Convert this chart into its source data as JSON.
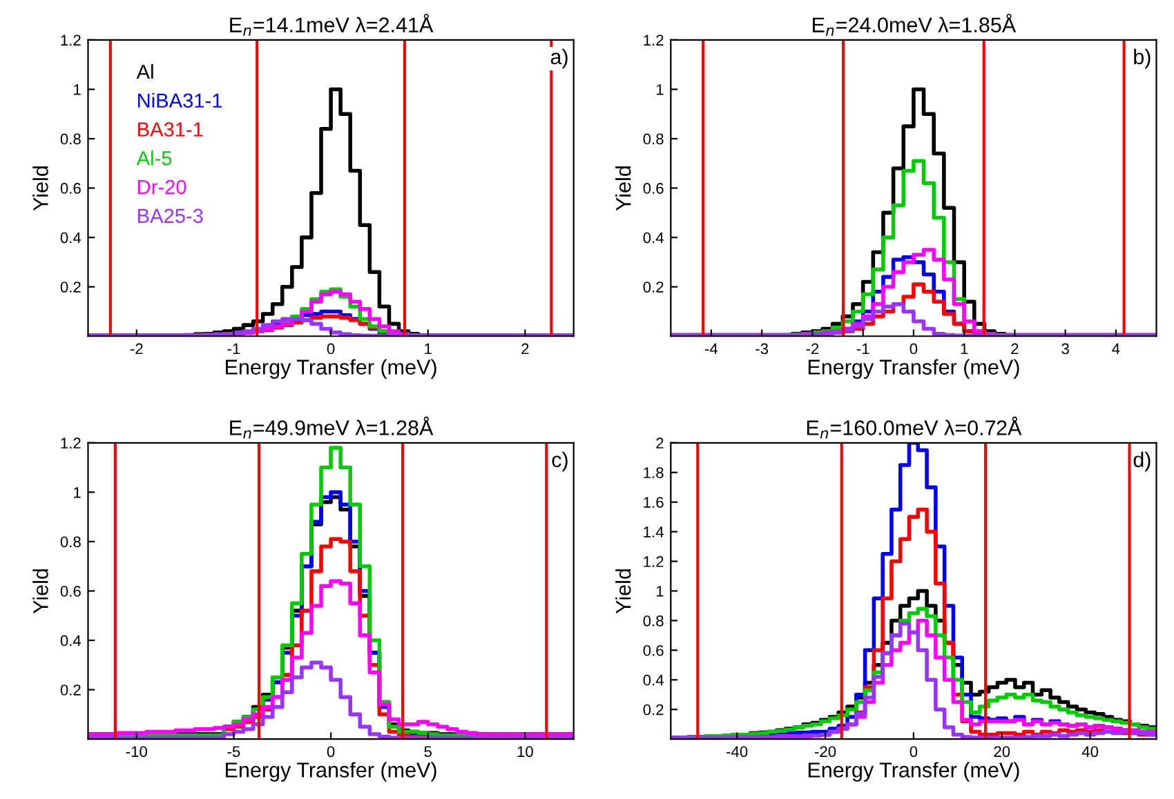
{
  "chart_data": [
    {
      "type": "histogram",
      "title": "E$_{n}$=14.1meV λ=2.41Å",
      "xlabel": "Energy Transfer (meV)",
      "ylabel": "Yield",
      "annotations": [
        "a)"
      ],
      "legend": "top left",
      "bins": [
        -2.5,
        -2.4,
        -2.3,
        -2.2,
        -2.1,
        -2.0,
        -1.9,
        -1.8,
        -1.7,
        -1.6,
        -1.5,
        -1.4,
        -1.3,
        -1.2,
        -1.1,
        -1.0,
        -0.9,
        -0.8,
        -0.7,
        -0.6,
        -0.5,
        -0.4,
        -0.3,
        -0.2,
        -0.1,
        0.0,
        0.1,
        0.2,
        0.3,
        0.4,
        0.5,
        0.6,
        0.7,
        0.8,
        0.9,
        1.0,
        1.1,
        1.2,
        1.3,
        1.4,
        1.5,
        1.6,
        1.7,
        1.8,
        1.9,
        2.0,
        2.1,
        2.2,
        2.3,
        2.4,
        2.5
      ],
      "xlim": [
        -2.5,
        2.5
      ],
      "xticks": [
        -2,
        -1,
        0,
        1,
        2
      ],
      "ylim": [
        0,
        1.2
      ],
      "yticks": [
        0.2,
        0.4,
        0.6,
        0.8,
        1,
        1.2
      ],
      "ref_lines": [
        {
          "axis": "x",
          "value": -2.27,
          "color": "#ff0000"
        },
        {
          "axis": "x",
          "value": -0.76,
          "color": "#ff0000"
        },
        {
          "axis": "x",
          "value": 0.76,
          "color": "#ff0000"
        },
        {
          "axis": "x",
          "value": 2.27,
          "color": "#ff0000"
        }
      ],
      "series": [
        {
          "name": "Al",
          "color": "#000000",
          "values": [
            0.003,
            0.003,
            0.003,
            0.003,
            0.003,
            0.003,
            0.003,
            0.003,
            0.003,
            0.003,
            0.005,
            0.008,
            0.01,
            0.015,
            0.02,
            0.03,
            0.045,
            0.06,
            0.09,
            0.13,
            0.2,
            0.28,
            0.4,
            0.58,
            0.84,
            1.0,
            0.9,
            0.67,
            0.45,
            0.26,
            0.12,
            0.05,
            0.02,
            0.01,
            0.003,
            0.003,
            0.003,
            0.003,
            0.003,
            0.003,
            0.003,
            0.003,
            0.003,
            0.003,
            0.003,
            0.003,
            0.003,
            0.003,
            0.003,
            0.003
          ]
        },
        {
          "name": "NiBA31-1",
          "color": "#0000ff",
          "values": [
            0.002,
            0.002,
            0.002,
            0.002,
            0.002,
            0.002,
            0.002,
            0.002,
            0.002,
            0.002,
            0.003,
            0.004,
            0.005,
            0.006,
            0.008,
            0.01,
            0.015,
            0.02,
            0.03,
            0.045,
            0.06,
            0.075,
            0.085,
            0.09,
            0.1,
            0.1,
            0.085,
            0.07,
            0.05,
            0.03,
            0.015,
            0.007,
            0.004,
            0.003,
            0.002,
            0.002,
            0.002,
            0.002,
            0.002,
            0.002,
            0.002,
            0.002,
            0.002,
            0.002,
            0.002,
            0.002,
            0.002,
            0.002,
            0.002,
            0.002
          ]
        },
        {
          "name": "BA31-1",
          "color": "#ff0000",
          "values": [
            0.002,
            0.002,
            0.002,
            0.002,
            0.002,
            0.002,
            0.002,
            0.002,
            0.002,
            0.002,
            0.003,
            0.004,
            0.005,
            0.006,
            0.008,
            0.01,
            0.013,
            0.02,
            0.025,
            0.035,
            0.045,
            0.055,
            0.065,
            0.075,
            0.08,
            0.08,
            0.075,
            0.065,
            0.05,
            0.035,
            0.02,
            0.01,
            0.005,
            0.003,
            0.002,
            0.002,
            0.002,
            0.002,
            0.002,
            0.002,
            0.002,
            0.002,
            0.002,
            0.002,
            0.002,
            0.002,
            0.002,
            0.002,
            0.002,
            0.002
          ]
        },
        {
          "name": "Al-5",
          "color": "#00cc00",
          "values": [
            0.002,
            0.002,
            0.002,
            0.002,
            0.002,
            0.002,
            0.002,
            0.002,
            0.002,
            0.002,
            0.003,
            0.004,
            0.005,
            0.006,
            0.008,
            0.01,
            0.015,
            0.02,
            0.03,
            0.04,
            0.06,
            0.08,
            0.11,
            0.15,
            0.18,
            0.19,
            0.16,
            0.12,
            0.07,
            0.04,
            0.02,
            0.01,
            0.005,
            0.003,
            0.002,
            0.002,
            0.002,
            0.002,
            0.002,
            0.002,
            0.002,
            0.002,
            0.002,
            0.002,
            0.002,
            0.002,
            0.002,
            0.002,
            0.002,
            0.002
          ]
        },
        {
          "name": "Dr-20",
          "color": "#ff00ff",
          "values": [
            0.002,
            0.002,
            0.002,
            0.002,
            0.002,
            0.002,
            0.002,
            0.002,
            0.002,
            0.002,
            0.003,
            0.004,
            0.005,
            0.006,
            0.008,
            0.01,
            0.013,
            0.02,
            0.03,
            0.04,
            0.05,
            0.07,
            0.1,
            0.14,
            0.17,
            0.18,
            0.17,
            0.14,
            0.11,
            0.07,
            0.04,
            0.02,
            0.008,
            0.004,
            0.002,
            0.002,
            0.002,
            0.002,
            0.002,
            0.002,
            0.002,
            0.002,
            0.002,
            0.002,
            0.002,
            0.002,
            0.002,
            0.002,
            0.002,
            0.002
          ]
        },
        {
          "name": "BA25-3",
          "color": "#9933ff",
          "values": [
            0.002,
            0.002,
            0.002,
            0.002,
            0.002,
            0.002,
            0.002,
            0.002,
            0.002,
            0.002,
            0.003,
            0.004,
            0.005,
            0.008,
            0.01,
            0.015,
            0.02,
            0.03,
            0.045,
            0.06,
            0.07,
            0.07,
            0.065,
            0.05,
            0.03,
            0.015,
            0.008,
            0.004,
            0.003,
            0.002,
            0.002,
            0.002,
            0.002,
            0.002,
            0.002,
            0.002,
            0.002,
            0.002,
            0.002,
            0.002,
            0.002,
            0.002,
            0.002,
            0.002,
            0.002,
            0.002,
            0.002,
            0.002,
            0.002,
            0.002
          ]
        }
      ]
    },
    {
      "type": "histogram",
      "title": "E$_{n}$=24.0meV λ=1.85Å",
      "xlabel": "Energy Transfer (meV)",
      "ylabel": "Yield",
      "annotations": [
        "b)"
      ],
      "bins": [
        -4.8,
        -4.6,
        -4.4,
        -4.2,
        -4.0,
        -3.8,
        -3.6,
        -3.4,
        -3.2,
        -3.0,
        -2.8,
        -2.6,
        -2.4,
        -2.2,
        -2.0,
        -1.8,
        -1.6,
        -1.4,
        -1.2,
        -1.0,
        -0.8,
        -0.6,
        -0.4,
        -0.2,
        0.0,
        0.2,
        0.4,
        0.6,
        0.8,
        1.0,
        1.2,
        1.4,
        1.6,
        1.8,
        2.0,
        2.2,
        2.4,
        2.6,
        2.8,
        3.0,
        3.2,
        3.4,
        3.6,
        3.8,
        4.0,
        4.2,
        4.4,
        4.6,
        4.8
      ],
      "xlim": [
        -4.8,
        4.8
      ],
      "xticks": [
        -4,
        -3,
        -2,
        -1,
        0,
        1,
        2,
        3,
        4
      ],
      "ylim": [
        0,
        1.2
      ],
      "yticks": [
        0.2,
        0.4,
        0.6,
        0.8,
        1,
        1.2
      ],
      "ref_lines": [
        {
          "axis": "x",
          "value": -4.16,
          "color": "#ff0000"
        },
        {
          "axis": "x",
          "value": -1.39,
          "color": "#ff0000"
        },
        {
          "axis": "x",
          "value": 1.39,
          "color": "#ff0000"
        },
        {
          "axis": "x",
          "value": 4.16,
          "color": "#ff0000"
        }
      ],
      "series": [
        {
          "color": "#000000",
          "values": [
            0.005,
            0.005,
            0.005,
            0.005,
            0.005,
            0.005,
            0.005,
            0.005,
            0.005,
            0.005,
            0.005,
            0.005,
            0.01,
            0.015,
            0.02,
            0.03,
            0.05,
            0.08,
            0.13,
            0.22,
            0.34,
            0.5,
            0.68,
            0.85,
            1.0,
            0.9,
            0.74,
            0.52,
            0.3,
            0.14,
            0.05,
            0.02,
            0.01,
            0.005,
            0.005,
            0.005,
            0.005,
            0.005,
            0.005,
            0.005,
            0.005,
            0.005,
            0.005,
            0.005,
            0.005,
            0.005,
            0.005,
            0.005
          ]
        },
        {
          "color": "#0000ff",
          "values": [
            0.003,
            0.003,
            0.003,
            0.003,
            0.003,
            0.003,
            0.003,
            0.003,
            0.003,
            0.003,
            0.003,
            0.003,
            0.004,
            0.006,
            0.01,
            0.015,
            0.02,
            0.03,
            0.06,
            0.1,
            0.18,
            0.24,
            0.31,
            0.32,
            0.3,
            0.25,
            0.18,
            0.1,
            0.05,
            0.02,
            0.01,
            0.005,
            0.004,
            0.003,
            0.003,
            0.003,
            0.003,
            0.003,
            0.003,
            0.003,
            0.003,
            0.003,
            0.003,
            0.003,
            0.003,
            0.003,
            0.003,
            0.003
          ]
        },
        {
          "color": "#ff0000",
          "values": [
            0.003,
            0.003,
            0.003,
            0.003,
            0.003,
            0.003,
            0.003,
            0.003,
            0.003,
            0.003,
            0.003,
            0.003,
            0.003,
            0.005,
            0.007,
            0.01,
            0.015,
            0.02,
            0.03,
            0.05,
            0.08,
            0.1,
            0.13,
            0.16,
            0.21,
            0.18,
            0.14,
            0.09,
            0.05,
            0.02,
            0.01,
            0.005,
            0.003,
            0.003,
            0.003,
            0.003,
            0.003,
            0.003,
            0.003,
            0.003,
            0.003,
            0.003,
            0.003,
            0.003,
            0.003,
            0.003,
            0.003,
            0.003
          ]
        },
        {
          "color": "#00cc00",
          "values": [
            0.003,
            0.003,
            0.003,
            0.003,
            0.003,
            0.003,
            0.003,
            0.003,
            0.003,
            0.003,
            0.003,
            0.003,
            0.007,
            0.01,
            0.015,
            0.02,
            0.035,
            0.06,
            0.1,
            0.17,
            0.27,
            0.4,
            0.53,
            0.67,
            0.71,
            0.62,
            0.48,
            0.3,
            0.15,
            0.06,
            0.02,
            0.01,
            0.005,
            0.003,
            0.003,
            0.003,
            0.003,
            0.003,
            0.003,
            0.003,
            0.003,
            0.003,
            0.003,
            0.003,
            0.003,
            0.003,
            0.003,
            0.003
          ]
        },
        {
          "color": "#ff00ff",
          "values": [
            0.005,
            0.005,
            0.005,
            0.005,
            0.005,
            0.005,
            0.005,
            0.005,
            0.005,
            0.005,
            0.005,
            0.005,
            0.005,
            0.008,
            0.01,
            0.015,
            0.02,
            0.03,
            0.05,
            0.08,
            0.13,
            0.2,
            0.26,
            0.3,
            0.33,
            0.35,
            0.31,
            0.23,
            0.13,
            0.06,
            0.02,
            0.01,
            0.005,
            0.005,
            0.005,
            0.005,
            0.005,
            0.005,
            0.005,
            0.005,
            0.005,
            0.005,
            0.005,
            0.005,
            0.005,
            0.005,
            0.005,
            0.005
          ]
        },
        {
          "color": "#9933ff",
          "values": [
            0.003,
            0.003,
            0.003,
            0.003,
            0.003,
            0.003,
            0.003,
            0.003,
            0.003,
            0.003,
            0.003,
            0.003,
            0.003,
            0.005,
            0.007,
            0.01,
            0.015,
            0.025,
            0.04,
            0.07,
            0.1,
            0.12,
            0.13,
            0.1,
            0.06,
            0.03,
            0.01,
            0.005,
            0.003,
            0.002,
            0.002,
            0.002,
            0.002,
            0.002,
            0.002,
            0.002,
            0.002,
            0.002,
            0.002,
            0.002,
            0.002,
            0.002,
            0.002,
            0.002,
            0.002,
            0.002,
            0.002,
            0.002
          ]
        }
      ]
    },
    {
      "type": "histogram",
      "title": "E$_{n}$=49.9meV λ=1.28Å",
      "xlabel": "Energy Transfer (meV)",
      "ylabel": "Yield",
      "annotations": [
        "c)"
      ],
      "bins": [
        -12.5,
        -12.0,
        -11.5,
        -11.0,
        -10.5,
        -10.0,
        -9.5,
        -9.0,
        -8.5,
        -8.0,
        -7.5,
        -7.0,
        -6.5,
        -6.0,
        -5.5,
        -5.0,
        -4.5,
        -4.0,
        -3.5,
        -3.0,
        -2.5,
        -2.0,
        -1.5,
        -1.0,
        -0.5,
        0.0,
        0.5,
        1.0,
        1.5,
        2.0,
        2.5,
        3.0,
        3.5,
        4.0,
        4.5,
        5.0,
        5.5,
        6.0,
        6.5,
        7.0,
        7.5,
        8.0,
        8.5,
        9.0,
        9.5,
        10.0,
        10.5,
        11.0,
        11.5,
        12.0,
        12.5
      ],
      "xlim": [
        -12.5,
        12.5
      ],
      "xticks": [
        -10,
        -5,
        0,
        5,
        10
      ],
      "ylim": [
        0,
        1.2
      ],
      "yticks": [
        0.2,
        0.4,
        0.6,
        0.8,
        1,
        1.2
      ],
      "ref_lines": [
        {
          "axis": "x",
          "value": -11.1,
          "color": "#ff0000"
        },
        {
          "axis": "x",
          "value": -3.7,
          "color": "#ff0000"
        },
        {
          "axis": "x",
          "value": 3.7,
          "color": "#ff0000"
        },
        {
          "axis": "x",
          "value": 11.1,
          "color": "#ff0000"
        }
      ],
      "series": [
        {
          "color": "#000000",
          "values": [
            0.02,
            0.02,
            0.02,
            0.02,
            0.02,
            0.02,
            0.02,
            0.02,
            0.02,
            0.02,
            0.02,
            0.02,
            0.02,
            0.02,
            0.05,
            0.07,
            0.09,
            0.13,
            0.18,
            0.25,
            0.37,
            0.52,
            0.7,
            0.87,
            0.96,
            0.98,
            0.93,
            0.78,
            0.58,
            0.35,
            0.15,
            0.06,
            0.035,
            0.03,
            0.025,
            0.025,
            0.02,
            0.02,
            0.02,
            0.02,
            0.02,
            0.02,
            0.02,
            0.02,
            0.02,
            0.02,
            0.02,
            0.02,
            0.02,
            0.02
          ]
        },
        {
          "color": "#0000ff",
          "values": [
            0.015,
            0.015,
            0.015,
            0.015,
            0.015,
            0.015,
            0.015,
            0.015,
            0.015,
            0.015,
            0.015,
            0.015,
            0.015,
            0.015,
            0.05,
            0.07,
            0.09,
            0.12,
            0.16,
            0.23,
            0.35,
            0.5,
            0.7,
            0.88,
            0.98,
            1.0,
            0.95,
            0.8,
            0.6,
            0.35,
            0.13,
            0.05,
            0.03,
            0.025,
            0.02,
            0.02,
            0.015,
            0.015,
            0.015,
            0.015,
            0.015,
            0.015,
            0.015,
            0.015,
            0.015,
            0.015,
            0.015,
            0.015,
            0.015,
            0.015
          ]
        },
        {
          "color": "#ff0000",
          "values": [
            0.01,
            0.01,
            0.01,
            0.01,
            0.01,
            0.01,
            0.01,
            0.01,
            0.01,
            0.01,
            0.01,
            0.01,
            0.01,
            0.01,
            0.04,
            0.05,
            0.07,
            0.09,
            0.12,
            0.17,
            0.26,
            0.38,
            0.52,
            0.68,
            0.78,
            0.81,
            0.8,
            0.68,
            0.5,
            0.3,
            0.1,
            0.03,
            0.015,
            0.01,
            0.01,
            0.01,
            0.01,
            0.01,
            0.01,
            0.01,
            0.01,
            0.01,
            0.01,
            0.01,
            0.01,
            0.01,
            0.01,
            0.01,
            0.01,
            0.01
          ]
        },
        {
          "color": "#00cc00",
          "values": [
            0.015,
            0.015,
            0.015,
            0.015,
            0.015,
            0.015,
            0.015,
            0.015,
            0.015,
            0.015,
            0.015,
            0.015,
            0.015,
            0.015,
            0.05,
            0.07,
            0.09,
            0.12,
            0.17,
            0.25,
            0.38,
            0.55,
            0.75,
            0.95,
            1.1,
            1.18,
            1.1,
            0.95,
            0.7,
            0.4,
            0.15,
            0.05,
            0.03,
            0.03,
            0.025,
            0.02,
            0.015,
            0.015,
            0.015,
            0.015,
            0.015,
            0.015,
            0.015,
            0.015,
            0.015,
            0.015,
            0.015,
            0.015,
            0.015,
            0.015
          ]
        },
        {
          "color": "#ff00ff",
          "values": [
            0.02,
            0.02,
            0.02,
            0.025,
            0.025,
            0.025,
            0.03,
            0.03,
            0.03,
            0.035,
            0.035,
            0.04,
            0.04,
            0.045,
            0.05,
            0.06,
            0.08,
            0.1,
            0.13,
            0.17,
            0.24,
            0.33,
            0.43,
            0.54,
            0.62,
            0.64,
            0.63,
            0.55,
            0.42,
            0.27,
            0.14,
            0.08,
            0.06,
            0.06,
            0.07,
            0.06,
            0.05,
            0.04,
            0.03,
            0.025,
            0.02,
            0.02,
            0.02,
            0.02,
            0.02,
            0.02,
            0.02,
            0.02,
            0.02,
            0.02
          ]
        },
        {
          "color": "#9933ff",
          "values": [
            0.005,
            0.005,
            0.005,
            0.005,
            0.005,
            0.005,
            0.005,
            0.005,
            0.005,
            0.005,
            0.005,
            0.005,
            0.005,
            0.005,
            0.02,
            0.03,
            0.04,
            0.06,
            0.09,
            0.13,
            0.19,
            0.25,
            0.29,
            0.31,
            0.29,
            0.24,
            0.17,
            0.1,
            0.05,
            0.02,
            0.01,
            0.005,
            0.005,
            0.005,
            0.005,
            0.005,
            0.005,
            0.005,
            0.005,
            0.005,
            0.005,
            0.005,
            0.005,
            0.005,
            0.005,
            0.005,
            0.005,
            0.005,
            0.005,
            0.005
          ]
        }
      ]
    },
    {
      "type": "histogram",
      "title": "E$_{n}$=160.0meV λ=0.72Å",
      "xlabel": "Energy Transfer (meV)",
      "ylabel": "Yield",
      "annotations": [
        "d)"
      ],
      "bins": [
        -55,
        -53,
        -51,
        -49,
        -47,
        -45,
        -43,
        -41,
        -39,
        -37,
        -35,
        -33,
        -31,
        -29,
        -27,
        -25,
        -23,
        -21,
        -19,
        -17,
        -15,
        -13,
        -11,
        -9,
        -7,
        -5,
        -3,
        -1,
        1,
        3,
        5,
        7,
        9,
        11,
        13,
        15,
        17,
        19,
        21,
        23,
        25,
        27,
        29,
        31,
        33,
        35,
        37,
        39,
        41,
        43,
        45,
        47,
        49,
        51,
        53,
        55
      ],
      "xlim": [
        -55,
        55
      ],
      "xticks": [
        -40,
        -20,
        0,
        20,
        40
      ],
      "ylim": [
        0,
        2
      ],
      "yticks": [
        0.2,
        0.4,
        0.6,
        0.8,
        1,
        1.2,
        1.4,
        1.6,
        1.8,
        2
      ],
      "ref_lines": [
        {
          "axis": "x",
          "value": -48.9,
          "color": "#ff0000"
        },
        {
          "axis": "x",
          "value": -16.3,
          "color": "#ff0000"
        },
        {
          "axis": "x",
          "value": 16.3,
          "color": "#ff0000"
        },
        {
          "axis": "x",
          "value": 48.9,
          "color": "#ff0000"
        }
      ],
      "series": [
        {
          "color": "#000000",
          "values": [
            0.01,
            0.01,
            0.015,
            0.015,
            0.02,
            0.02,
            0.025,
            0.03,
            0.03,
            0.04,
            0.045,
            0.05,
            0.06,
            0.07,
            0.08,
            0.1,
            0.11,
            0.13,
            0.15,
            0.18,
            0.22,
            0.28,
            0.38,
            0.5,
            0.65,
            0.8,
            0.9,
            0.95,
            1.0,
            0.9,
            0.8,
            0.65,
            0.5,
            0.38,
            0.3,
            0.32,
            0.35,
            0.38,
            0.4,
            0.35,
            0.38,
            0.3,
            0.33,
            0.28,
            0.25,
            0.22,
            0.2,
            0.18,
            0.17,
            0.15,
            0.13,
            0.12,
            0.1,
            0.09,
            0.08
          ]
        },
        {
          "color": "#0000ff",
          "values": [
            0.01,
            0.01,
            0.015,
            0.015,
            0.02,
            0.02,
            0.02,
            0.025,
            0.025,
            0.03,
            0.03,
            0.035,
            0.04,
            0.04,
            0.045,
            0.045,
            0.05,
            0.05,
            0.07,
            0.09,
            0.15,
            0.3,
            0.6,
            0.95,
            1.25,
            1.55,
            1.85,
            2.0,
            1.95,
            1.7,
            1.3,
            0.9,
            0.55,
            0.3,
            0.15,
            0.14,
            0.13,
            0.14,
            0.12,
            0.15,
            0.1,
            0.13,
            0.1,
            0.12,
            0.1,
            0.09,
            0.1,
            0.08,
            0.09,
            0.08,
            0.07,
            0.06,
            0.05,
            0.05,
            0.04
          ]
        },
        {
          "color": "#ff0000",
          "values": [
            0.005,
            0.005,
            0.005,
            0.005,
            0.005,
            0.005,
            0.005,
            0.01,
            0.01,
            0.01,
            0.01,
            0.01,
            0.015,
            0.015,
            0.02,
            0.02,
            0.025,
            0.03,
            0.05,
            0.07,
            0.1,
            0.18,
            0.35,
            0.6,
            0.95,
            1.2,
            1.35,
            1.5,
            1.55,
            1.4,
            1.05,
            0.65,
            0.3,
            0.12,
            0.05,
            0.03,
            0.03,
            0.04,
            0.04,
            0.03,
            0.05,
            0.03,
            0.05,
            0.04,
            0.06,
            0.05,
            0.06,
            0.05,
            0.06,
            0.05,
            0.05,
            0.04,
            0.04,
            0.03,
            0.03
          ]
        },
        {
          "color": "#00cc00",
          "values": [
            0.01,
            0.01,
            0.015,
            0.015,
            0.02,
            0.02,
            0.025,
            0.03,
            0.03,
            0.035,
            0.04,
            0.05,
            0.055,
            0.065,
            0.08,
            0.09,
            0.1,
            0.12,
            0.14,
            0.16,
            0.2,
            0.25,
            0.33,
            0.45,
            0.58,
            0.7,
            0.8,
            0.85,
            0.88,
            0.83,
            0.7,
            0.55,
            0.4,
            0.25,
            0.18,
            0.22,
            0.26,
            0.28,
            0.3,
            0.28,
            0.3,
            0.26,
            0.25,
            0.22,
            0.2,
            0.18,
            0.16,
            0.15,
            0.14,
            0.13,
            0.12,
            0.11,
            0.1,
            0.08,
            0.07
          ]
        },
        {
          "color": "#ff00ff",
          "values": [
            0.005,
            0.005,
            0.005,
            0.005,
            0.005,
            0.005,
            0.005,
            0.01,
            0.01,
            0.01,
            0.01,
            0.01,
            0.015,
            0.015,
            0.02,
            0.02,
            0.025,
            0.03,
            0.05,
            0.07,
            0.1,
            0.15,
            0.25,
            0.38,
            0.5,
            0.6,
            0.65,
            0.72,
            0.8,
            0.7,
            0.55,
            0.4,
            0.25,
            0.13,
            0.1,
            0.12,
            0.12,
            0.12,
            0.12,
            0.13,
            0.1,
            0.12,
            0.1,
            0.11,
            0.1,
            0.09,
            0.1,
            0.08,
            0.09,
            0.08,
            0.07,
            0.06,
            0.06,
            0.05,
            0.05
          ]
        },
        {
          "color": "#9933ff",
          "values": [
            0.01,
            0.01,
            0.01,
            0.01,
            0.01,
            0.01,
            0.01,
            0.015,
            0.015,
            0.015,
            0.015,
            0.015,
            0.02,
            0.02,
            0.02,
            0.025,
            0.025,
            0.03,
            0.05,
            0.07,
            0.1,
            0.17,
            0.28,
            0.42,
            0.58,
            0.7,
            0.78,
            0.72,
            0.6,
            0.4,
            0.2,
            0.08,
            0.03,
            0.015,
            0.01,
            0.01,
            0.01,
            0.01,
            0.01,
            0.01,
            0.015,
            0.02,
            0.02,
            0.03,
            0.02,
            0.03,
            0.04,
            0.03,
            0.04,
            0.05,
            0.04,
            0.05,
            0.04,
            0.04,
            0.03
          ]
        }
      ]
    }
  ]
}
